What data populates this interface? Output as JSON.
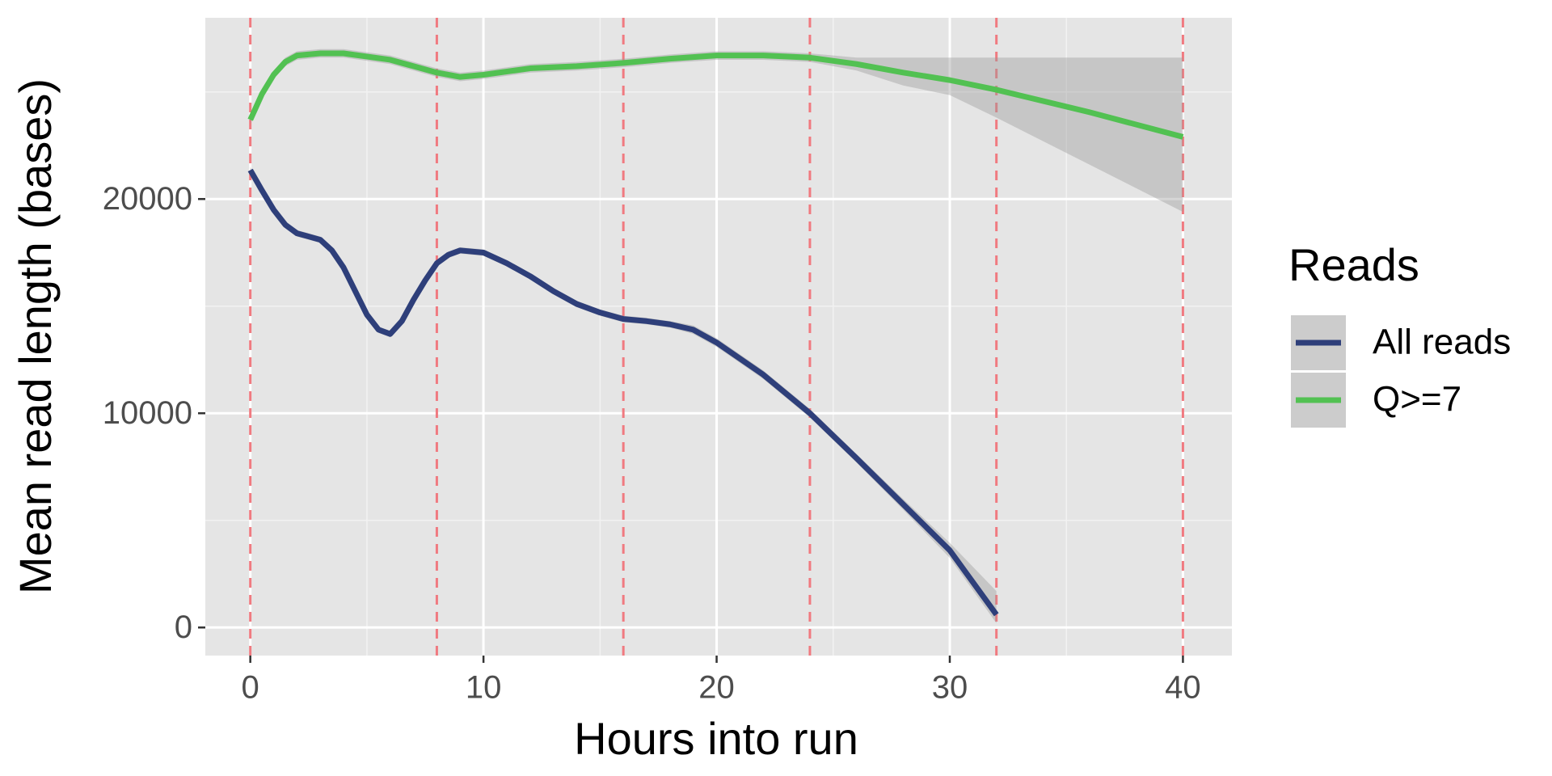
{
  "chart_data": {
    "type": "line",
    "x_label": "Hours into run",
    "y_label": "Mean read length (bases)",
    "legend_title": "Reads",
    "legend_position": "right",
    "xlim": [
      -1.93,
      42.1
    ],
    "ylim": [
      -1310,
      28460
    ],
    "xticks": [
      0,
      10,
      20,
      30,
      40
    ],
    "xminor": [
      5,
      15,
      25,
      35
    ],
    "yticks": [
      0,
      10000,
      20000
    ],
    "yminor": [
      5000,
      15000,
      25000
    ],
    "grid": true,
    "vlines": [
      0,
      8,
      16,
      24,
      32,
      40
    ],
    "vline_color": "#f07a80",
    "band_color": "#999999",
    "series": [
      {
        "name": "All reads",
        "color": "#2e3f7a",
        "x": [
          0,
          0.5,
          1,
          1.5,
          2,
          3,
          3.5,
          4,
          5,
          5.5,
          6,
          6.5,
          7,
          7.5,
          8,
          8.5,
          9,
          10,
          11,
          12,
          13,
          14,
          15,
          16,
          17,
          18,
          19,
          20,
          22,
          24,
          26,
          28,
          30,
          32
        ],
        "values": [
          21350,
          20400,
          19500,
          18800,
          18400,
          18100,
          17600,
          16800,
          14600,
          13900,
          13700,
          14300,
          15300,
          16200,
          17000,
          17400,
          17600,
          17500,
          17000,
          16400,
          15700,
          15100,
          14700,
          14400,
          14300,
          14150,
          13900,
          13300,
          11800,
          10000,
          7900,
          5750,
          3600,
          600
        ],
        "upper": [
          21500,
          20550,
          19650,
          18950,
          18550,
          18250,
          17750,
          16950,
          14750,
          14050,
          13850,
          14450,
          15450,
          16350,
          17150,
          17550,
          17750,
          17650,
          17150,
          16550,
          15850,
          15250,
          14850,
          14550,
          14450,
          14300,
          14100,
          13500,
          12000,
          10200,
          8100,
          6000,
          3950,
          1700
        ],
        "lower": [
          21200,
          20250,
          19350,
          18650,
          18250,
          17950,
          17450,
          16650,
          14450,
          13750,
          13550,
          14150,
          15150,
          16050,
          16850,
          17250,
          17450,
          17350,
          16850,
          16250,
          15550,
          14950,
          14550,
          14250,
          14150,
          14000,
          13700,
          13100,
          11600,
          9800,
          7700,
          5500,
          3250,
          200
        ]
      },
      {
        "name": "Q>=7",
        "color": "#52c152",
        "x": [
          0,
          0.5,
          1,
          1.5,
          2,
          3,
          4,
          6,
          8,
          9,
          10,
          12,
          14,
          16,
          18,
          20,
          22,
          24,
          26,
          28,
          30,
          32,
          36,
          40
        ],
        "values": [
          23700,
          24900,
          25800,
          26400,
          26700,
          26800,
          26800,
          26500,
          25900,
          25700,
          25800,
          26100,
          26200,
          26350,
          26550,
          26700,
          26700,
          26600,
          26300,
          25900,
          25550,
          25100,
          24050,
          22900
        ],
        "upper": [
          23900,
          25100,
          26000,
          26600,
          26900,
          27000,
          27000,
          26700,
          26100,
          25900,
          26000,
          26300,
          26400,
          26550,
          26750,
          26900,
          26900,
          26800,
          26600,
          26600,
          26600,
          26600,
          26600,
          26600
        ],
        "lower": [
          23500,
          24700,
          25600,
          26200,
          26500,
          26600,
          26600,
          26300,
          25700,
          25500,
          25600,
          25900,
          26000,
          26150,
          26350,
          26500,
          26500,
          26400,
          26000,
          25300,
          24850,
          23800,
          21600,
          19400
        ]
      }
    ]
  }
}
